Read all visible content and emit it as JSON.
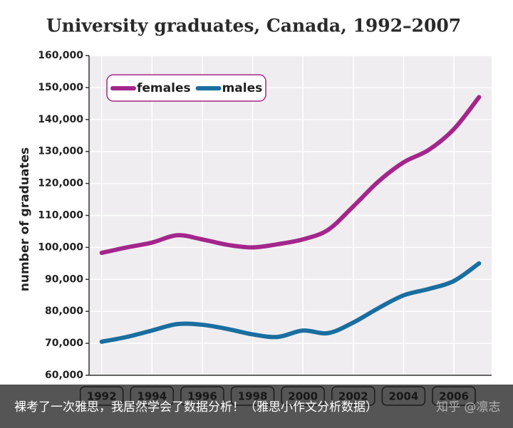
{
  "chart_data": {
    "type": "line",
    "title": "University graduates, Canada, 1992–2007",
    "y_label": "number of graduates",
    "x": [
      1992,
      1993,
      1994,
      1995,
      1996,
      1997,
      1998,
      1999,
      2000,
      2001,
      2002,
      2003,
      2004,
      2005,
      2006,
      2007
    ],
    "series": [
      {
        "name": "females",
        "color": "#a3268c",
        "values": [
          98300,
          100000,
          101500,
          103800,
          102500,
          100800,
          100000,
          101000,
          102500,
          105500,
          112800,
          120600,
          126600,
          130500,
          137000,
          147000
        ]
      },
      {
        "name": "males",
        "color": "#1a6ea0",
        "values": [
          70500,
          72000,
          74000,
          76000,
          75800,
          74500,
          72800,
          72000,
          74000,
          73200,
          76500,
          81000,
          85000,
          87000,
          89500,
          95000
        ]
      }
    ],
    "xlim": [
      1991.5,
      2007.5
    ],
    "xticks": [
      1992,
      1994,
      1996,
      1998,
      2000,
      2002,
      2004,
      2006
    ],
    "ylim": [
      60000,
      160000
    ],
    "yticks": [
      {
        "value": 60000,
        "label": "60,000"
      },
      {
        "value": 70000,
        "label": "70,000"
      },
      {
        "value": 80000,
        "label": "80,000"
      },
      {
        "value": 90000,
        "label": "90,000"
      },
      {
        "value": 100000,
        "label": "100,000"
      },
      {
        "value": 110000,
        "label": "110,000"
      },
      {
        "value": 120000,
        "label": "120,000"
      },
      {
        "value": 130000,
        "label": "130,000"
      },
      {
        "value": 140000,
        "label": "140,000"
      },
      {
        "value": 150000,
        "label": "150,000"
      },
      {
        "value": 160000,
        "label": "160,000"
      }
    ],
    "grid": true,
    "legend": "upper left"
  },
  "caption": {
    "text": "裸考了一次雅思，我居然学会了数据分析！（雅思小作文分析数据）",
    "watermark": "知乎 @凛志"
  }
}
